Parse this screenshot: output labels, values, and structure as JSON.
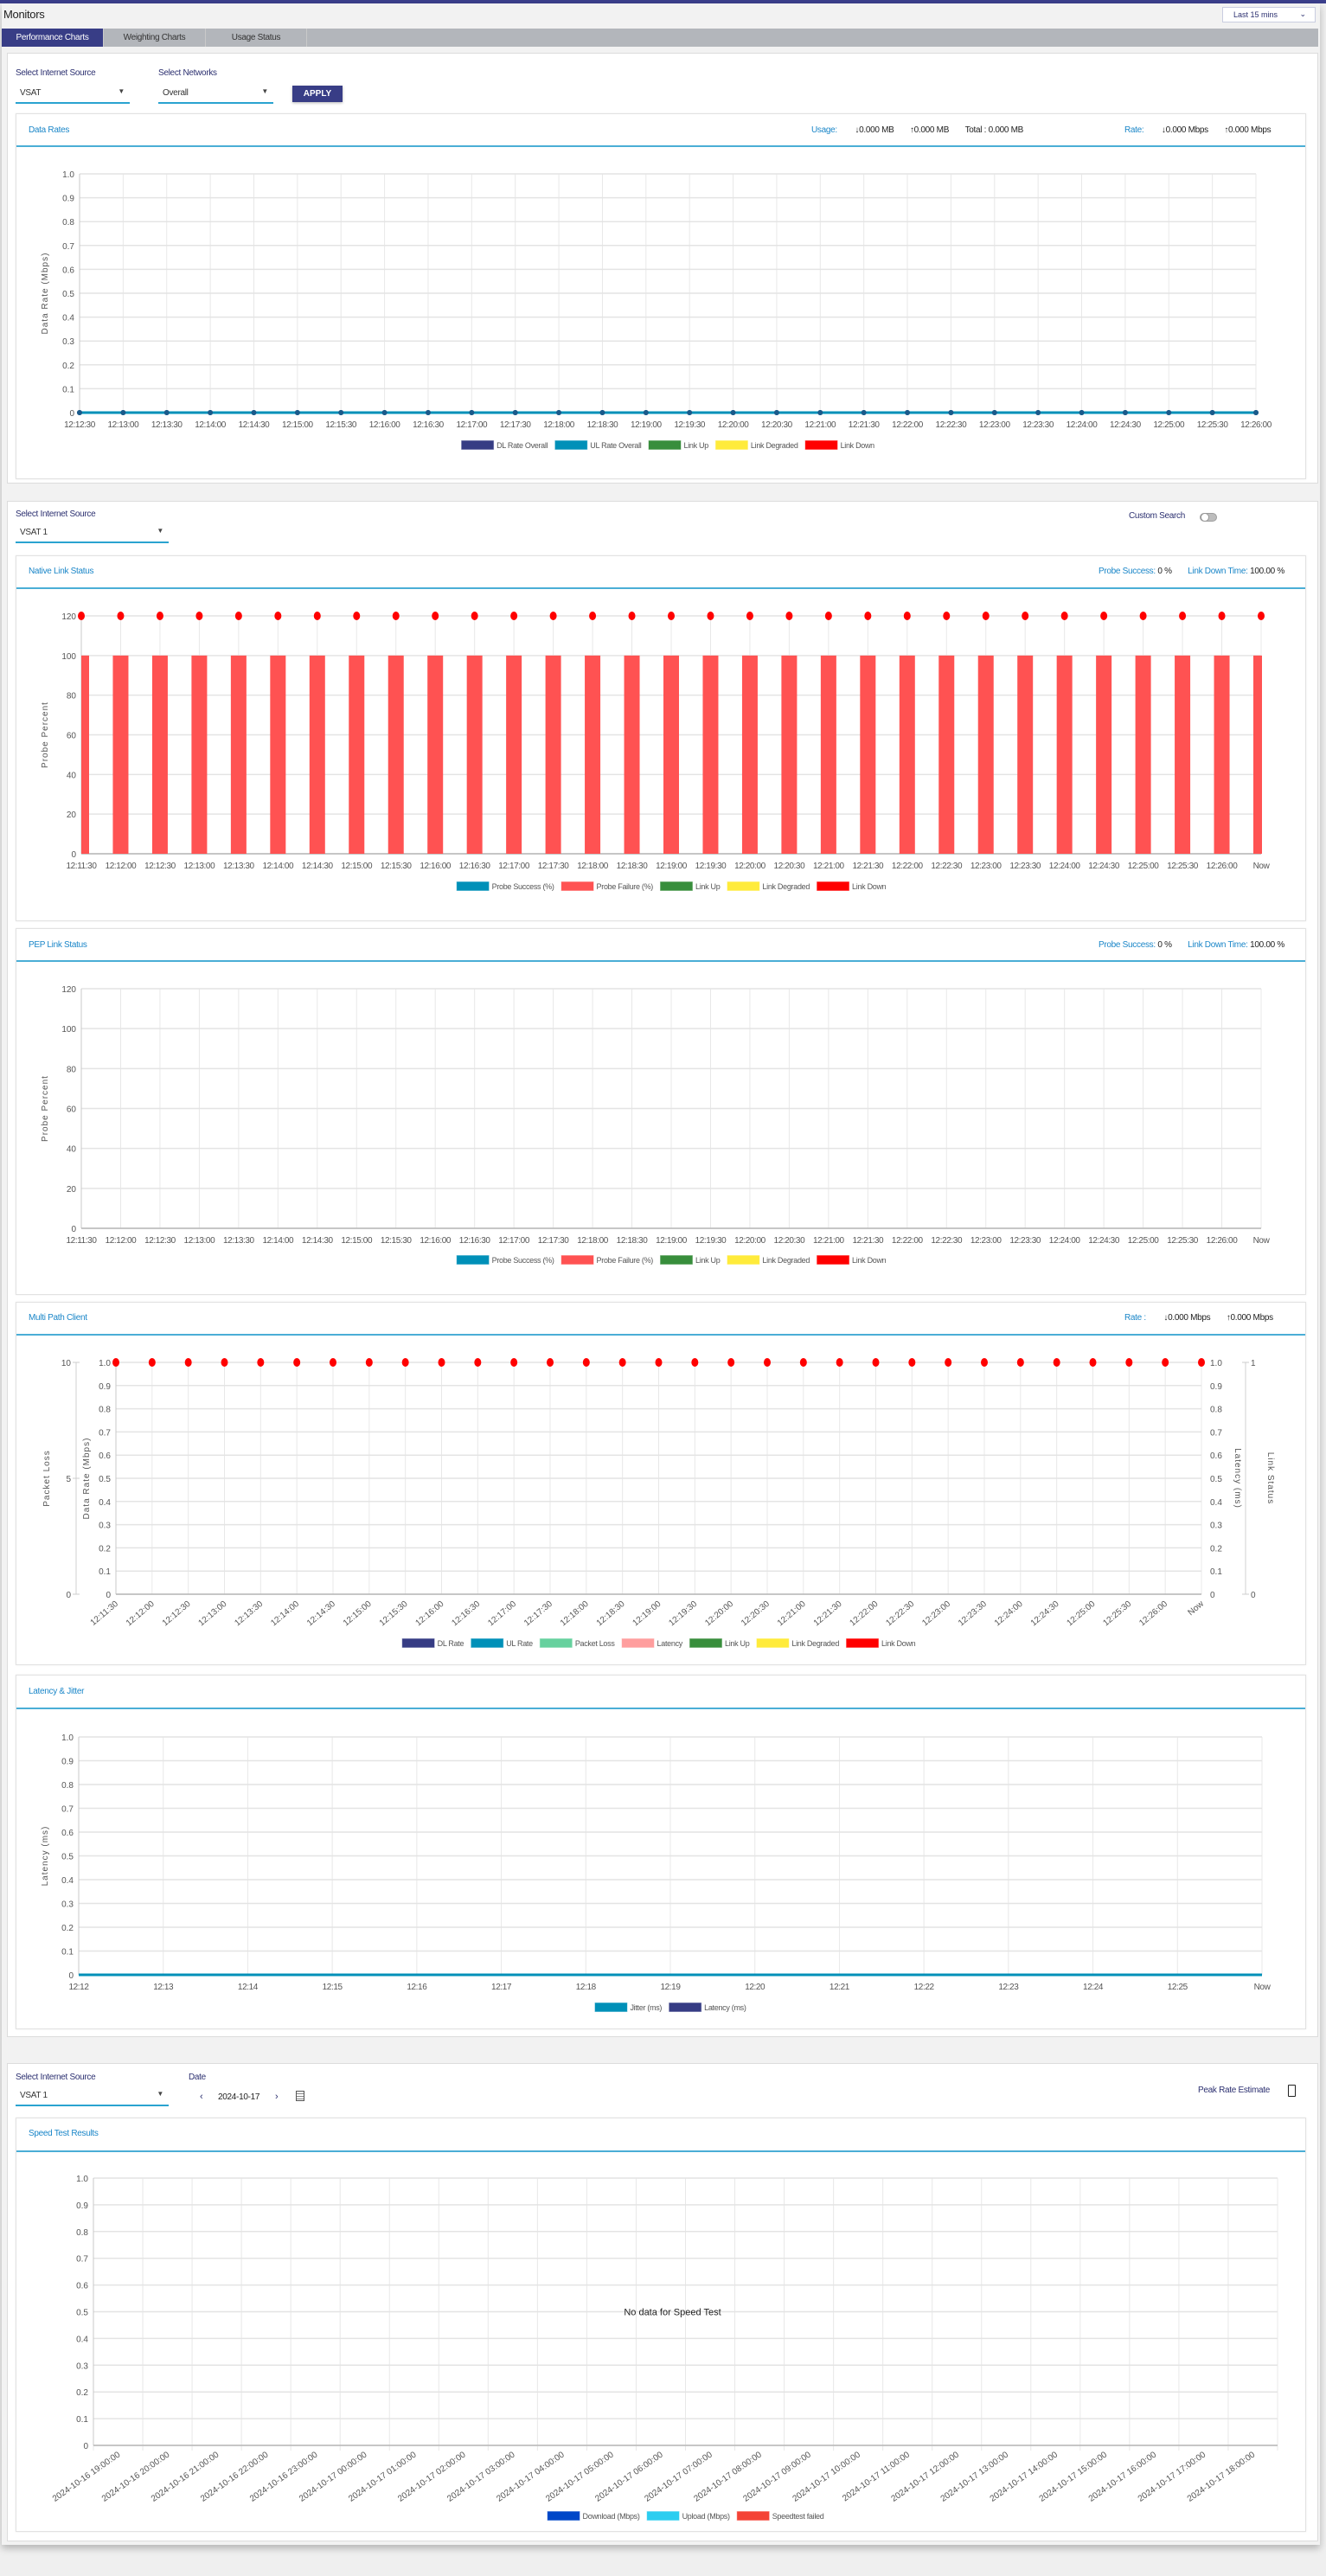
{
  "header": {
    "title": "Monitors",
    "time_range": "Last 15 mins"
  },
  "tabs": [
    {
      "label": "Performance Charts",
      "active": true
    },
    {
      "label": "Weighting Charts",
      "active": false
    },
    {
      "label": "Usage Status",
      "active": false
    }
  ],
  "filters": {
    "source_label": "Select Internet Source",
    "source_value": "VSAT",
    "networks_label": "Select Networks",
    "networks_value": "Overall",
    "apply_label": "APPLY"
  },
  "data_rates": {
    "title": "Data Rates",
    "usage_label": "Usage:",
    "usage_dl": "0.000 MB",
    "usage_ul": "0.000 MB",
    "total": "Total : 0.000 MB",
    "rate_label": "Rate:",
    "rate_dl": "0.000 Mbps",
    "rate_ul": "0.000 Mbps"
  },
  "link_panel": {
    "source_label": "Select Internet Source",
    "source_value": "VSAT 1",
    "custom_search_label": "Custom Search",
    "custom_search_on": false
  },
  "native": {
    "title": "Native Link Status",
    "probe_label": "Probe Success:",
    "probe_value": "0 %",
    "down_label": "Link Down Time:",
    "down_value": "100.00 %"
  },
  "pep": {
    "title": "PEP Link Status",
    "probe_label": "Probe Success:",
    "probe_value": "0 %",
    "down_label": "Link Down Time:",
    "down_value": "100.00 %"
  },
  "multipath": {
    "title": "Multi Path Client",
    "rate_label": "Rate :",
    "rate_dl": "0.000 Mbps",
    "rate_ul": "0.000 Mbps"
  },
  "latency": {
    "title": "Latency & Jitter"
  },
  "speed_panel": {
    "source_label": "Select Internet Source",
    "source_value": "VSAT 1",
    "date_label": "Date",
    "date_value": "2024-10-17",
    "peak_rate_label": "Peak Rate Estimate",
    "peak_rate_checked": false
  },
  "speed": {
    "title": "Speed Test Results"
  },
  "icons": {
    "dropdown": "triangle-down",
    "chevron": "chevron-down",
    "download": "arrow-down",
    "upload": "arrow-up",
    "prev": "chevron-left",
    "next": "chevron-right",
    "calendar": "calendar"
  },
  "colors": {
    "accent": "#383d86",
    "link": "#1a86c8",
    "underline": "#2aa3d0"
  },
  "chart_data": [
    {
      "id": "data_rates",
      "type": "line",
      "ylabel": "Data Rate (Mbps)",
      "ylim": [
        0,
        1
      ],
      "yticks": [
        "0",
        "0.1",
        "0.2",
        "0.3",
        "0.4",
        "0.5",
        "0.6",
        "0.7",
        "0.8",
        "0.9",
        "1.0"
      ],
      "x": [
        "12:12:30",
        "12:13:00",
        "12:13:30",
        "12:14:00",
        "12:14:30",
        "12:15:00",
        "12:15:30",
        "12:16:00",
        "12:16:30",
        "12:17:00",
        "12:17:30",
        "12:18:00",
        "12:18:30",
        "12:19:00",
        "12:19:30",
        "12:20:00",
        "12:20:30",
        "12:21:00",
        "12:21:30",
        "12:22:00",
        "12:22:30",
        "12:23:00",
        "12:23:30",
        "12:24:00",
        "12:24:30",
        "12:25:00",
        "12:25:30",
        "12:26:00"
      ],
      "series": [
        {
          "name": "DL Rate Overall",
          "kind": "line",
          "color": "#363c84",
          "values": [
            0,
            0,
            0,
            0,
            0,
            0,
            0,
            0,
            0,
            0,
            0,
            0,
            0,
            0,
            0,
            0,
            0,
            0,
            0,
            0,
            0,
            0,
            0,
            0,
            0,
            0,
            0,
            0
          ]
        },
        {
          "name": "UL Rate Overall",
          "kind": "line",
          "color": "#0090b8",
          "values": [
            0,
            0,
            0,
            0,
            0,
            0,
            0,
            0,
            0,
            0,
            0,
            0,
            0,
            0,
            0,
            0,
            0,
            0,
            0,
            0,
            0,
            0,
            0,
            0,
            0,
            0,
            0,
            0
          ]
        }
      ],
      "legend": [
        {
          "name": "DL Rate Overall",
          "color": "#363c84"
        },
        {
          "name": "UL Rate Overall",
          "color": "#0090b8"
        },
        {
          "name": "Link Up",
          "color": "#388e3c"
        },
        {
          "name": "Link Degraded",
          "color": "#ffeb3b"
        },
        {
          "name": "Link Down",
          "color": "#ff0000"
        }
      ],
      "grid": true,
      "legend_position": "bottom"
    },
    {
      "id": "native",
      "type": "bar",
      "ylabel": "Probe Percent",
      "ylim": [
        0,
        120
      ],
      "yticks": [
        "0",
        "20",
        "40",
        "60",
        "80",
        "100",
        "120"
      ],
      "x": [
        "12:11:30",
        "12:12:00",
        "12:12:30",
        "12:13:00",
        "12:13:30",
        "12:14:00",
        "12:14:30",
        "12:15:00",
        "12:15:30",
        "12:16:00",
        "12:16:30",
        "12:17:00",
        "12:17:30",
        "12:18:00",
        "12:18:30",
        "12:19:00",
        "12:19:30",
        "12:20:00",
        "12:20:30",
        "12:21:00",
        "12:21:30",
        "12:22:00",
        "12:22:30",
        "12:23:00",
        "12:23:30",
        "12:24:00",
        "12:24:30",
        "12:25:00",
        "12:25:30",
        "12:26:00",
        "Now"
      ],
      "series": [
        {
          "name": "Probe Failure (%)",
          "kind": "bar",
          "color": "#ff5252",
          "values": [
            100,
            100,
            100,
            100,
            100,
            100,
            100,
            100,
            100,
            100,
            100,
            100,
            100,
            100,
            100,
            100,
            100,
            100,
            100,
            100,
            100,
            100,
            100,
            100,
            100,
            100,
            100,
            100,
            100,
            100,
            100
          ]
        },
        {
          "name": "Link Down",
          "kind": "dot",
          "color": "#ff0000",
          "values": [
            120,
            120,
            120,
            120,
            120,
            120,
            120,
            120,
            120,
            120,
            120,
            120,
            120,
            120,
            120,
            120,
            120,
            120,
            120,
            120,
            120,
            120,
            120,
            120,
            120,
            120,
            120,
            120,
            120,
            120,
            120
          ]
        }
      ],
      "legend": [
        {
          "name": "Probe Success (%)",
          "color": "#0090b8"
        },
        {
          "name": "Probe Failure (%)",
          "color": "#ff5252"
        },
        {
          "name": "Link Up",
          "color": "#388e3c"
        },
        {
          "name": "Link Degraded",
          "color": "#ffeb3b"
        },
        {
          "name": "Link Down",
          "color": "#ff0000"
        }
      ],
      "grid": true,
      "legend_position": "bottom"
    },
    {
      "id": "pep",
      "type": "bar",
      "ylabel": "Probe Percent",
      "ylim": [
        0,
        120
      ],
      "yticks": [
        "0",
        "20",
        "40",
        "60",
        "80",
        "100",
        "120"
      ],
      "x": [
        "12:11:30",
        "12:12:00",
        "12:12:30",
        "12:13:00",
        "12:13:30",
        "12:14:00",
        "12:14:30",
        "12:15:00",
        "12:15:30",
        "12:16:00",
        "12:16:30",
        "12:17:00",
        "12:17:30",
        "12:18:00",
        "12:18:30",
        "12:19:00",
        "12:19:30",
        "12:20:00",
        "12:20:30",
        "12:21:00",
        "12:21:30",
        "12:22:00",
        "12:22:30",
        "12:23:00",
        "12:23:30",
        "12:24:00",
        "12:24:30",
        "12:25:00",
        "12:25:30",
        "12:26:00",
        "Now"
      ],
      "series": [],
      "legend": [
        {
          "name": "Probe Success (%)",
          "color": "#0090b8"
        },
        {
          "name": "Probe Failure (%)",
          "color": "#ff5252"
        },
        {
          "name": "Link Up",
          "color": "#388e3c"
        },
        {
          "name": "Link Degraded",
          "color": "#ffeb3b"
        },
        {
          "name": "Link Down",
          "color": "#ff0000"
        }
      ],
      "grid": true,
      "legend_position": "bottom"
    },
    {
      "id": "multipath",
      "type": "line",
      "ylabel": "Data Rate (Mbps)",
      "ylim": [
        0,
        1
      ],
      "yticks": [
        "0",
        "0.1",
        "0.2",
        "0.3",
        "0.4",
        "0.5",
        "0.6",
        "0.7",
        "0.8",
        "0.9",
        "1.0"
      ],
      "extra_axes": [
        {
          "side": "left-outer",
          "label": "Packet Loss",
          "ylim": [
            0,
            10
          ],
          "ticks": [
            "0",
            "5",
            "10"
          ]
        },
        {
          "side": "right-inner",
          "label": "Latency (ms)",
          "ylim": [
            0,
            1
          ],
          "ticks": [
            "0",
            "0.1",
            "0.2",
            "0.3",
            "0.4",
            "0.5",
            "0.6",
            "0.7",
            "0.8",
            "0.9",
            "1.0"
          ]
        },
        {
          "side": "right-outer",
          "label": "Link Status",
          "ylim": [
            0,
            1
          ],
          "ticks": [
            "0",
            "1"
          ]
        }
      ],
      "x_rotated": true,
      "x": [
        "12:11:30",
        "12:12:00",
        "12:12:30",
        "12:13:00",
        "12:13:30",
        "12:14:00",
        "12:14:30",
        "12:15:00",
        "12:15:30",
        "12:16:00",
        "12:16:30",
        "12:17:00",
        "12:17:30",
        "12:18:00",
        "12:18:30",
        "12:19:00",
        "12:19:30",
        "12:20:00",
        "12:20:30",
        "12:21:00",
        "12:21:30",
        "12:22:00",
        "12:22:30",
        "12:23:00",
        "12:23:30",
        "12:24:00",
        "12:24:30",
        "12:25:00",
        "12:25:30",
        "12:26:00",
        "Now"
      ],
      "series": [
        {
          "name": "Link Down",
          "kind": "dot",
          "color": "#ff0000",
          "values": [
            1,
            1,
            1,
            1,
            1,
            1,
            1,
            1,
            1,
            1,
            1,
            1,
            1,
            1,
            1,
            1,
            1,
            1,
            1,
            1,
            1,
            1,
            1,
            1,
            1,
            1,
            1,
            1,
            1,
            1,
            1
          ]
        }
      ],
      "legend": [
        {
          "name": "DL Rate",
          "color": "#363c84"
        },
        {
          "name": "UL Rate",
          "color": "#0090b8"
        },
        {
          "name": "Packet Loss",
          "color": "#66d19e"
        },
        {
          "name": "Latency",
          "color": "#ff9e9e"
        },
        {
          "name": "Link Up",
          "color": "#388e3c"
        },
        {
          "name": "Link Degraded",
          "color": "#ffeb3b"
        },
        {
          "name": "Link Down",
          "color": "#ff0000"
        }
      ],
      "grid": true,
      "legend_position": "bottom"
    },
    {
      "id": "latency",
      "type": "line",
      "ylabel": "Latency (ms)",
      "ylim": [
        0,
        1
      ],
      "yticks": [
        "0",
        "0.1",
        "0.2",
        "0.3",
        "0.4",
        "0.5",
        "0.6",
        "0.7",
        "0.8",
        "0.9",
        "1.0"
      ],
      "x": [
        "12:12",
        "12:13",
        "12:14",
        "12:15",
        "12:16",
        "12:17",
        "12:18",
        "12:19",
        "12:20",
        "12:21",
        "12:22",
        "12:23",
        "12:24",
        "12:25",
        "Now"
      ],
      "series": [
        {
          "name": "Jitter (ms)",
          "kind": "line",
          "color": "#0090b8",
          "values": [
            0,
            0,
            0,
            0,
            0,
            0,
            0,
            0,
            0,
            0,
            0,
            0,
            0,
            0,
            0
          ]
        }
      ],
      "legend": [
        {
          "name": "Jitter (ms)",
          "color": "#0090b8"
        },
        {
          "name": "Latency (ms)",
          "color": "#363c84"
        }
      ],
      "grid": true,
      "legend_position": "bottom"
    },
    {
      "id": "speed",
      "type": "bar",
      "ylabel": "",
      "ylim": [
        0,
        1
      ],
      "yticks": [
        "0",
        "0.1",
        "0.2",
        "0.3",
        "0.4",
        "0.5",
        "0.6",
        "0.7",
        "0.8",
        "0.9",
        "1.0"
      ],
      "x_rotated": true,
      "x_bands": true,
      "x": [
        "2024-10-16 19:00:00",
        "2024-10-16 20:00:00",
        "2024-10-16 21:00:00",
        "2024-10-16 22:00:00",
        "2024-10-16 23:00:00",
        "2024-10-17 00:00:00",
        "2024-10-17 01:00:00",
        "2024-10-17 02:00:00",
        "2024-10-17 03:00:00",
        "2024-10-17 04:00:00",
        "2024-10-17 05:00:00",
        "2024-10-17 06:00:00",
        "2024-10-17 07:00:00",
        "2024-10-17 08:00:00",
        "2024-10-17 09:00:00",
        "2024-10-17 10:00:00",
        "2024-10-17 11:00:00",
        "2024-10-17 12:00:00",
        "2024-10-17 13:00:00",
        "2024-10-17 14:00:00",
        "2024-10-17 15:00:00",
        "2024-10-17 16:00:00",
        "2024-10-17 17:00:00",
        "2024-10-17 18:00:00"
      ],
      "series": [],
      "message": "No data for Speed Test",
      "legend": [
        {
          "name": "Download (Mbps)",
          "color": "#0047c8"
        },
        {
          "name": "Upload (Mbps)",
          "color": "#2ccdf0"
        },
        {
          "name": "Speedtest failed",
          "color": "#f44336"
        }
      ],
      "grid": true,
      "legend_position": "bottom"
    }
  ]
}
